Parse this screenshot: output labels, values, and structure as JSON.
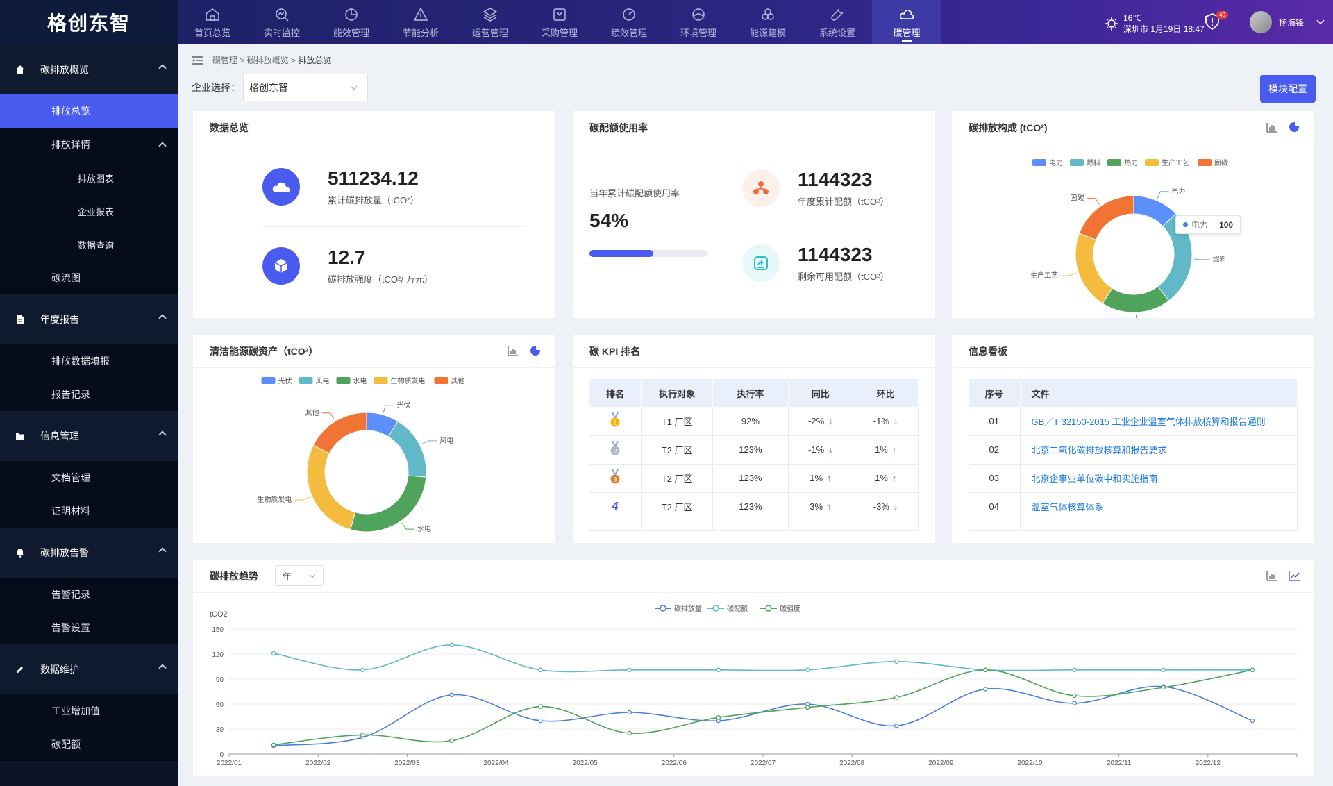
{
  "app": {
    "logo": "格创东智"
  },
  "nav": [
    {
      "label": "首页总览",
      "icon": "home-icon"
    },
    {
      "label": "实时监控",
      "icon": "monitor-icon"
    },
    {
      "label": "能效管理",
      "icon": "pie-icon"
    },
    {
      "label": "节能分析",
      "icon": "triangle-icon"
    },
    {
      "label": "运营管理",
      "icon": "layers-icon"
    },
    {
      "label": "采购管理",
      "icon": "cart-icon"
    },
    {
      "label": "绩效管理",
      "icon": "gauge-icon"
    },
    {
      "label": "环境管理",
      "icon": "leaf-icon"
    },
    {
      "label": "能源建模",
      "icon": "circles-icon"
    },
    {
      "label": "系统设置",
      "icon": "wrench-icon"
    },
    {
      "label": "碳管理",
      "icon": "cloud-icon",
      "active": true
    }
  ],
  "header": {
    "temp": "16℃",
    "location_time": "深圳市 1月19日 18:47",
    "notify_count": "40",
    "username": "杨海锋"
  },
  "sidebar": {
    "s1": {
      "label": "碳排放概览"
    },
    "s1_items": {
      "overview": "排放总览",
      "detail": "排放详情",
      "chart": "排放图表",
      "report": "企业报表",
      "query": "数据查询",
      "flow": "碳流图"
    },
    "s2": {
      "label": "年度报告"
    },
    "s2_items": {
      "fill": "排放数据填报",
      "record": "报告记录"
    },
    "s3": {
      "label": "信息管理"
    },
    "s3_items": {
      "doc": "文档管理",
      "proof": "证明材料"
    },
    "s4": {
      "label": "碳排放告警"
    },
    "s4_items": {
      "record": "告警记录",
      "setting": "告警设置"
    },
    "s5": {
      "label": "数据维护"
    },
    "s5_items": {
      "industry": "工业增加值",
      "quota": "碳配额"
    }
  },
  "breadcrumb": {
    "a": "碳管理",
    "b": "碳排放概览",
    "c": "排放总览",
    "sep": " > "
  },
  "enterprise": {
    "label": "企业选择：",
    "value": "格创东智"
  },
  "config_button": "模块配置",
  "overview": {
    "title": "数据总览",
    "total_value": "511234.12",
    "total_label": "累计碳排放量（tCO²）",
    "intensity_value": "12.7",
    "intensity_label": "碳排放强度（tCO²/ 万元）"
  },
  "quota": {
    "title": "碳配额使用率",
    "rate_label": "当年累计碳配额使用率",
    "rate_value": "54%",
    "rate": 0.54,
    "annual_value": "1144323",
    "annual_label": "年度累计配额（tCO²）",
    "remain_value": "1144323",
    "remain_label": "剩余可用配额（tCO²）"
  },
  "composition": {
    "title": "碳排放构成 (tCO²)",
    "tooltip_name": "电力",
    "tooltip_value": "100"
  },
  "clean": {
    "title": "清洁能源碳资产（tCO²）"
  },
  "kpi": {
    "title": "碳 KPI 排名",
    "headers": [
      "排名",
      "执行对象",
      "执行率",
      "同比",
      "环比"
    ],
    "rows": [
      {
        "rank": "1",
        "obj": "T1 厂区",
        "rate": "92%",
        "yoy": "-2%",
        "yoy_dir": "down",
        "mom": "-1%",
        "mom_dir": "down"
      },
      {
        "rank": "2",
        "obj": "T2 厂区",
        "rate": "123%",
        "yoy": "-1%",
        "yoy_dir": "down",
        "mom": "1%",
        "mom_dir": "up"
      },
      {
        "rank": "3",
        "obj": "T2 厂区",
        "rate": "123%",
        "yoy": "1%",
        "yoy_dir": "up",
        "mom": "1%",
        "mom_dir": "up"
      },
      {
        "rank": "4",
        "obj": "T2 厂区",
        "rate": "123%",
        "yoy": "3%",
        "yoy_dir": "up",
        "mom": "-3%",
        "mom_dir": "down"
      }
    ]
  },
  "board": {
    "title": "信息看板",
    "headers": [
      "序号",
      "文件"
    ],
    "rows": [
      {
        "no": "01",
        "file": "GB／T 32150-2015 工业企业温室气体排放核算和报告通则"
      },
      {
        "no": "02",
        "file": "北京二氧化碳排放核算和报告要求"
      },
      {
        "no": "03",
        "file": "北京企事业单位碳中和实施指南"
      },
      {
        "no": "04",
        "file": "温室气体核算体系"
      }
    ]
  },
  "trend": {
    "title": "碳排放趋势",
    "period": "年"
  },
  "chart_data": [
    {
      "type": "pie",
      "title": "碳排放构成 (tCO²)",
      "categories": [
        "电力",
        "燃料",
        "热力",
        "生产工艺",
        "固碳"
      ],
      "values": [
        100,
        210,
        150,
        170,
        150
      ],
      "colors": [
        "#5b8ff9",
        "#61b8c6",
        "#4fa35a",
        "#f3bc3f",
        "#f27434"
      ]
    },
    {
      "type": "pie",
      "title": "清洁能源碳资产（tCO²）",
      "categories": [
        "光伏",
        "风电",
        "水电",
        "生物质发电",
        "其他"
      ],
      "values": [
        50,
        100,
        160,
        160,
        100
      ],
      "colors": [
        "#5b8ff9",
        "#61b8c6",
        "#4fa35a",
        "#f3bc3f",
        "#f27434"
      ]
    },
    {
      "type": "line",
      "title": "碳排放趋势",
      "ylabel": "tCO2",
      "ylim": [
        0,
        150
      ],
      "yticks": [
        0,
        30,
        60,
        90,
        120,
        150
      ],
      "x": [
        "2022/01",
        "2022/02",
        "2022/03",
        "2022/04",
        "2022/05",
        "2022/06",
        "2022/07",
        "2022/08",
        "2022/09",
        "2022/10",
        "2022/11",
        "2022/12"
      ],
      "series": [
        {
          "name": "碳排放量",
          "color": "#4a7fe0",
          "values": [
            10,
            20,
            71,
            40,
            50,
            40,
            60,
            34,
            78,
            61,
            81,
            40
          ]
        },
        {
          "name": "碳配额",
          "color": "#62b8c8",
          "values": [
            121,
            101,
            131,
            101,
            101,
            101,
            101,
            111,
            101,
            101,
            101,
            101
          ]
        },
        {
          "name": "碳强度",
          "color": "#4fa35a",
          "values": [
            11,
            23,
            16,
            57,
            25,
            44,
            56,
            68,
            101,
            70,
            80,
            101
          ]
        }
      ]
    }
  ]
}
